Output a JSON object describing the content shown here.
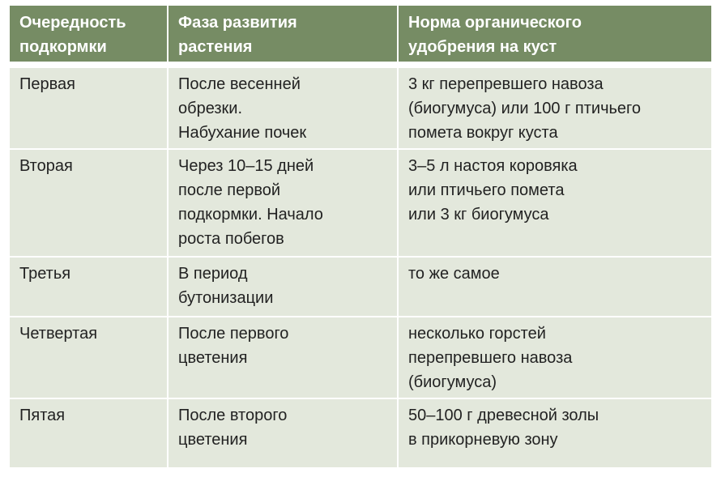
{
  "table": {
    "headers": [
      "Очередность\nподкормки",
      "Фаза развития\nрастения",
      "Норма органического\nудобрения на куст"
    ],
    "rows": [
      [
        "Первая",
        "После весенней\nобрезки.\nНабухание почек",
        "3 кг перепревшего навоза\n(биогумуса) или 100 г птичьего\nпомета вокруг куста"
      ],
      [
        "Вторая",
        "Через 10–15 дней\nпосле первой\nподкормки. Начало\nроста побегов",
        "3–5 л настоя коровяка\nили птичьего помета\nили 3 кг биогумуса"
      ],
      [
        "Третья",
        "В период\nбутонизации",
        "то же самое"
      ],
      [
        "Четвертая",
        "После первого\nцветения",
        "несколько горстей\nперепревшего навоза\n(биогумуса)"
      ],
      [
        "Пятая",
        "После второго\nцветения",
        "50–100 г древесной золы\nв прикорневую зону"
      ]
    ]
  },
  "colors": {
    "header_bg": "#768c64",
    "cell_bg": "#e3e8dc",
    "header_text": "#ffffff",
    "text": "#222222"
  }
}
